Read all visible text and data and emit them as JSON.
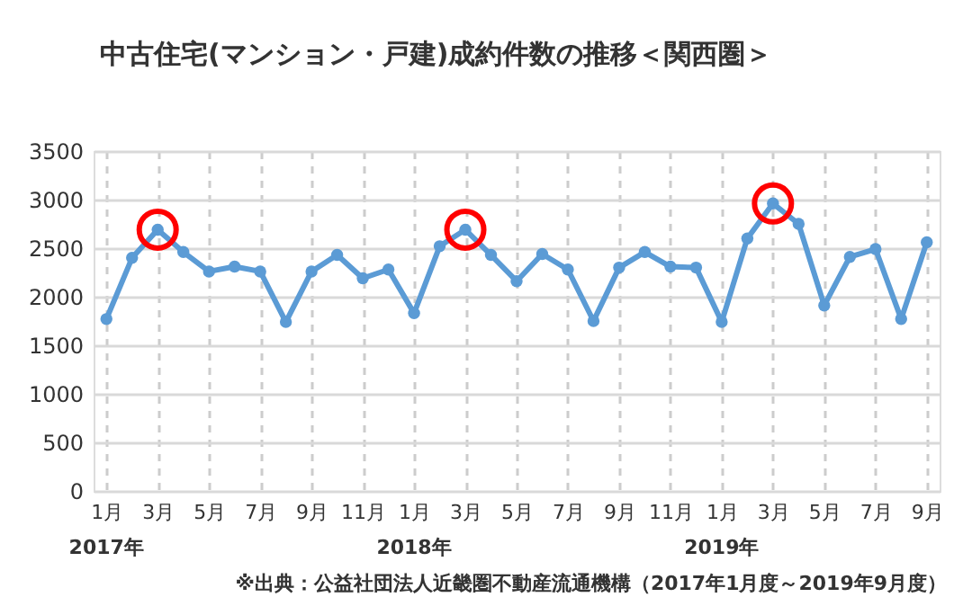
{
  "chart_data": {
    "type": "line",
    "title": "中古住宅(マンション・戸建)成約件数の推移＜関西圏＞",
    "categories": [
      "1月",
      null,
      "3月",
      null,
      "5月",
      null,
      "7月",
      null,
      "9月",
      null,
      "11月",
      null,
      "1月",
      null,
      "3月",
      null,
      "5月",
      null,
      "7月",
      null,
      "9月",
      null,
      "11月",
      null,
      "1月",
      null,
      "3月",
      null,
      "5月",
      null,
      "7月",
      null,
      "9月"
    ],
    "series": [
      {
        "type": "line",
        "color": "#5b9bd5",
        "values": [
          1770,
          2400,
          2690,
          2460,
          2260,
          2310,
          2260,
          1740,
          2260,
          2430,
          2190,
          2280,
          1830,
          2520,
          2690,
          2430,
          2160,
          2440,
          2280,
          1750,
          2300,
          2460,
          2310,
          2300,
          1740,
          2600,
          2960,
          2750,
          1910,
          2410,
          2490,
          1770,
          2560
        ]
      },
      {
        "type": "scatter",
        "color": "#ff0000",
        "values": [
          null,
          null,
          2690,
          null,
          null,
          null,
          null,
          null,
          null,
          null,
          null,
          null,
          null,
          null,
          2690,
          null,
          null,
          null,
          null,
          null,
          null,
          null,
          null,
          null,
          null,
          null,
          2960,
          null,
          null,
          null,
          null,
          null,
          null
        ]
      }
    ],
    "ylim": [
      0,
      3500
    ],
    "yticks": [
      0,
      500,
      1000,
      1500,
      2000,
      2500,
      3000,
      3500
    ],
    "grid": true,
    "marker": "circle",
    "line_style": "solid",
    "legend": false,
    "annotations": [
      "2017年",
      "2018年",
      "2019年",
      "※出典：公益社団法人近畿圏不動産流通機構（2017年1月度～2019年9月度）"
    ]
  }
}
